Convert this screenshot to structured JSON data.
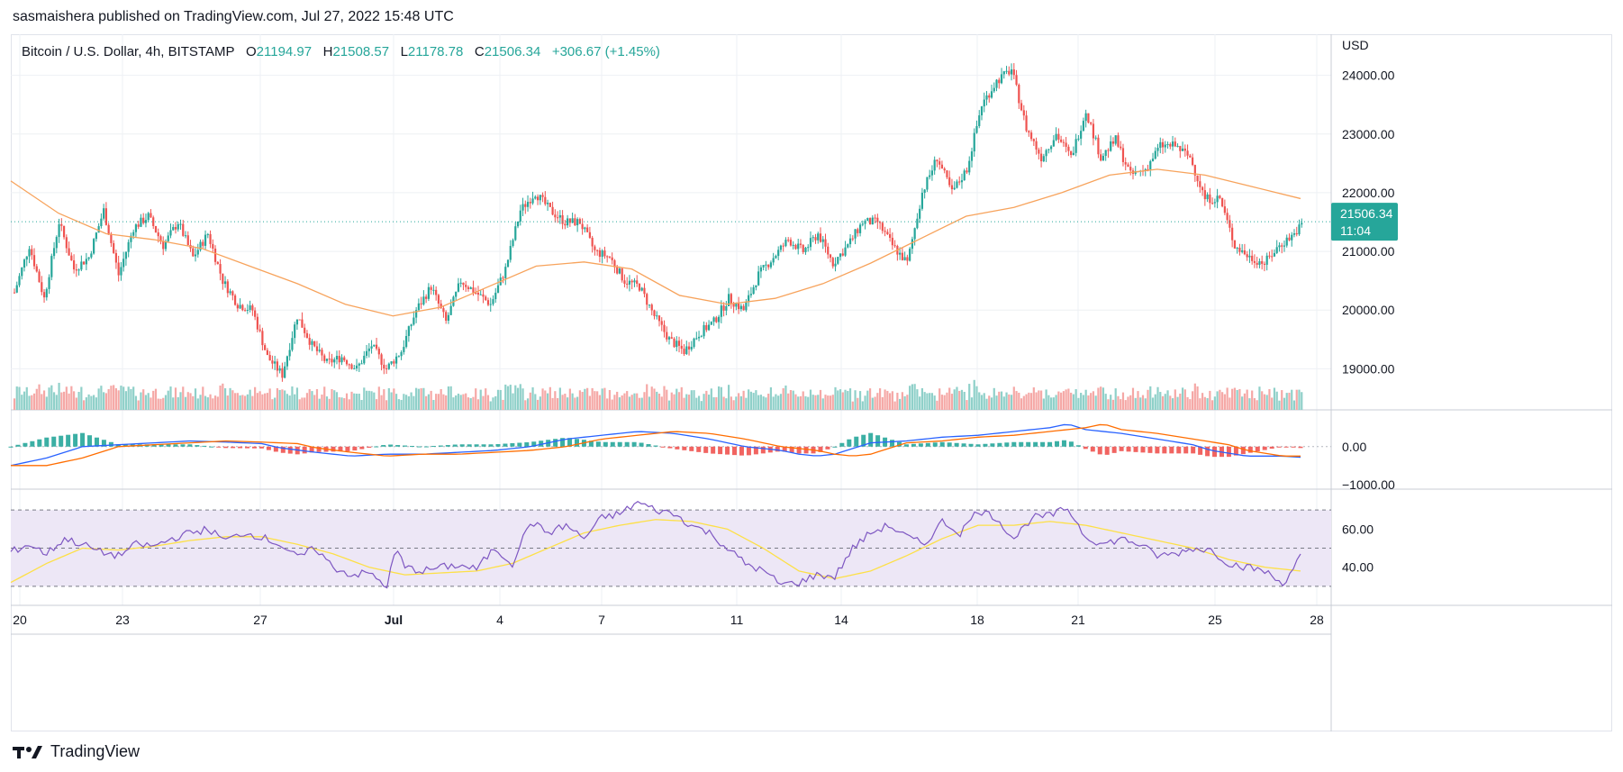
{
  "header": {
    "publish_text": "sasmaishera published on TradingView.com, Jul 27, 2022 15:48 UTC",
    "symbol": "Bitcoin / U.S. Dollar, 4h, BITSTAMP",
    "o_label": "O",
    "o_value": "21194.97",
    "h_label": "H",
    "h_value": "21508.57",
    "l_label": "L",
    "l_value": "21178.78",
    "c_label": "C",
    "c_value": "21506.34",
    "change": "+306.67 (+1.45%)"
  },
  "footer": {
    "brand": "TradingView"
  },
  "colors": {
    "up": "#26a69a",
    "down": "#ef5350",
    "up_volume": "#8fd0c9",
    "down_volume": "#f5a8a6",
    "ma": "#f7a35c",
    "macd": "#2962ff",
    "signal": "#ff6d00",
    "rsi": "#7e57c2",
    "rsi_ma": "#fde047",
    "rsi_band": "#ede7f6",
    "grid": "#eef0f4",
    "last_price_line": "#26a69a"
  },
  "chart_data": {
    "type": "candlestick",
    "title": "Bitcoin / U.S. Dollar, 4h, BITSTAMP",
    "price_axis": {
      "unit_label": "USD",
      "ticks": [
        "24000.00",
        "23000.00",
        "22000.00",
        "21000.00",
        "20000.00",
        "19000.00"
      ],
      "ylim": [
        18300,
        24700
      ]
    },
    "last_price": {
      "value": "21506.34",
      "countdown": "11:04",
      "numeric": 21506.34
    },
    "x_axis": {
      "ticks": [
        "20",
        "23",
        "27",
        "Jul",
        "4",
        "7",
        "11",
        "14",
        "18",
        "21",
        "25",
        "28"
      ]
    },
    "price_waypoints": [
      [
        0,
        20300
      ],
      [
        6,
        21100
      ],
      [
        12,
        20200
      ],
      [
        18,
        21500
      ],
      [
        24,
        20700
      ],
      [
        30,
        20900
      ],
      [
        36,
        21700
      ],
      [
        42,
        20600
      ],
      [
        48,
        21400
      ],
      [
        54,
        21600
      ],
      [
        60,
        21100
      ],
      [
        66,
        21500
      ],
      [
        72,
        20900
      ],
      [
        78,
        21300
      ],
      [
        84,
        20500
      ],
      [
        90,
        20100
      ],
      [
        96,
        20000
      ],
      [
        102,
        19200
      ],
      [
        108,
        18900
      ],
      [
        114,
        19900
      ],
      [
        120,
        19400
      ],
      [
        126,
        19100
      ],
      [
        132,
        19200
      ],
      [
        138,
        19000
      ],
      [
        144,
        19400
      ],
      [
        150,
        19000
      ],
      [
        156,
        19300
      ],
      [
        162,
        20000
      ],
      [
        168,
        20400
      ],
      [
        174,
        19800
      ],
      [
        180,
        20500
      ],
      [
        186,
        20300
      ],
      [
        192,
        20100
      ],
      [
        198,
        20700
      ],
      [
        204,
        21700
      ],
      [
        210,
        22000
      ],
      [
        216,
        21700
      ],
      [
        222,
        21500
      ],
      [
        228,
        21500
      ],
      [
        234,
        21000
      ],
      [
        240,
        20900
      ],
      [
        246,
        20500
      ],
      [
        252,
        20400
      ],
      [
        258,
        19900
      ],
      [
        264,
        19500
      ],
      [
        270,
        19300
      ],
      [
        276,
        19600
      ],
      [
        282,
        19800
      ],
      [
        288,
        20200
      ],
      [
        294,
        20000
      ],
      [
        300,
        20600
      ],
      [
        306,
        20900
      ],
      [
        312,
        21200
      ],
      [
        318,
        21000
      ],
      [
        324,
        21300
      ],
      [
        330,
        20800
      ],
      [
        336,
        21100
      ],
      [
        342,
        21500
      ],
      [
        348,
        21500
      ],
      [
        354,
        21100
      ],
      [
        360,
        20800
      ],
      [
        366,
        22000
      ],
      [
        372,
        22600
      ],
      [
        378,
        22000
      ],
      [
        384,
        22400
      ],
      [
        390,
        23500
      ],
      [
        396,
        23900
      ],
      [
        402,
        24100
      ],
      [
        408,
        23100
      ],
      [
        414,
        22600
      ],
      [
        420,
        23000
      ],
      [
        426,
        22600
      ],
      [
        432,
        23400
      ],
      [
        438,
        22600
      ],
      [
        444,
        22900
      ],
      [
        450,
        22300
      ],
      [
        456,
        22400
      ],
      [
        462,
        22800
      ],
      [
        468,
        22800
      ],
      [
        474,
        22600
      ],
      [
        480,
        21900
      ],
      [
        486,
        21900
      ],
      [
        492,
        21100
      ],
      [
        498,
        20900
      ],
      [
        504,
        20800
      ],
      [
        510,
        21100
      ],
      [
        516,
        21300
      ],
      [
        520,
        21506
      ]
    ],
    "moving_average": [
      [
        0,
        22200
      ],
      [
        40,
        21650
      ],
      [
        80,
        21300
      ],
      [
        120,
        21200
      ],
      [
        160,
        21050
      ],
      [
        200,
        20750
      ],
      [
        240,
        20450
      ],
      [
        280,
        20100
      ],
      [
        320,
        19900
      ],
      [
        360,
        20050
      ],
      [
        400,
        20400
      ],
      [
        440,
        20750
      ],
      [
        480,
        20820
      ],
      [
        520,
        20700
      ],
      [
        560,
        20250
      ],
      [
        600,
        20100
      ],
      [
        640,
        20200
      ],
      [
        680,
        20450
      ],
      [
        720,
        20800
      ],
      [
        760,
        21200
      ],
      [
        800,
        21600
      ],
      [
        840,
        21750
      ],
      [
        880,
        22000
      ],
      [
        920,
        22300
      ],
      [
        960,
        22400
      ],
      [
        1000,
        22300
      ],
      [
        1040,
        22100
      ],
      [
        1080,
        21900
      ]
    ],
    "volume": {
      "ylim": [
        0,
        100
      ]
    },
    "macd": {
      "ticks": [
        "0.00",
        "−1000.00"
      ],
      "ylim": [
        -1100,
        900
      ],
      "waypoints": [
        [
          0,
          -500
        ],
        [
          40,
          -300
        ],
        [
          80,
          0
        ],
        [
          120,
          50
        ],
        [
          160,
          100
        ],
        [
          200,
          150
        ],
        [
          240,
          120
        ],
        [
          280,
          80
        ],
        [
          300,
          -30
        ],
        [
          340,
          -150
        ],
        [
          380,
          -250
        ],
        [
          420,
          -200
        ],
        [
          460,
          -200
        ],
        [
          500,
          -150
        ],
        [
          540,
          -100
        ],
        [
          580,
          0
        ],
        [
          620,
          200
        ],
        [
          660,
          300
        ],
        [
          700,
          400
        ],
        [
          740,
          350
        ],
        [
          780,
          200
        ],
        [
          820,
          0
        ],
        [
          860,
          -100
        ],
        [
          880,
          -200
        ],
        [
          900,
          -250
        ],
        [
          920,
          -200
        ],
        [
          960,
          100
        ],
        [
          1000,
          150
        ],
        [
          1040,
          250
        ],
        [
          1080,
          300
        ],
        [
          1120,
          400
        ],
        [
          1160,
          500
        ],
        [
          1180,
          600
        ],
        [
          1200,
          450
        ],
        [
          1240,
          350
        ],
        [
          1280,
          200
        ],
        [
          1320,
          50
        ],
        [
          1340,
          -100
        ],
        [
          1380,
          -250
        ],
        [
          1420,
          -250
        ],
        [
          1440,
          -280
        ]
      ]
    },
    "rsi": {
      "ticks": [
        "60.00",
        "40.00"
      ],
      "ylim": [
        20,
        80
      ],
      "band": [
        30,
        70
      ],
      "waypoints": [
        [
          0,
          48
        ],
        [
          20,
          52
        ],
        [
          40,
          47
        ],
        [
          60,
          55
        ],
        [
          80,
          52
        ],
        [
          100,
          48
        ],
        [
          120,
          46
        ],
        [
          140,
          52
        ],
        [
          160,
          51
        ],
        [
          180,
          55
        ],
        [
          200,
          58
        ],
        [
          220,
          60
        ],
        [
          240,
          54
        ],
        [
          260,
          58
        ],
        [
          280,
          56
        ],
        [
          300,
          52
        ],
        [
          320,
          45
        ],
        [
          340,
          50
        ],
        [
          360,
          40
        ],
        [
          380,
          36
        ],
        [
          400,
          37
        ],
        [
          420,
          30
        ],
        [
          430,
          50
        ],
        [
          440,
          40
        ],
        [
          460,
          38
        ],
        [
          480,
          40
        ],
        [
          500,
          41
        ],
        [
          520,
          39
        ],
        [
          540,
          50
        ],
        [
          560,
          42
        ],
        [
          580,
          64
        ],
        [
          600,
          58
        ],
        [
          620,
          62
        ],
        [
          640,
          55
        ],
        [
          660,
          66
        ],
        [
          680,
          68
        ],
        [
          700,
          74
        ],
        [
          720,
          70
        ],
        [
          740,
          68
        ],
        [
          760,
          62
        ],
        [
          780,
          58
        ],
        [
          800,
          50
        ],
        [
          820,
          42
        ],
        [
          840,
          38
        ],
        [
          860,
          31
        ],
        [
          880,
          32
        ],
        [
          900,
          36
        ],
        [
          920,
          35
        ],
        [
          940,
          50
        ],
        [
          960,
          58
        ],
        [
          980,
          62
        ],
        [
          1000,
          56
        ],
        [
          1020,
          52
        ],
        [
          1040,
          64
        ],
        [
          1060,
          58
        ],
        [
          1080,
          70
        ],
        [
          1100,
          66
        ],
        [
          1120,
          55
        ],
        [
          1140,
          66
        ],
        [
          1160,
          67
        ],
        [
          1180,
          71
        ],
        [
          1200,
          56
        ],
        [
          1220,
          52
        ],
        [
          1240,
          55
        ],
        [
          1260,
          52
        ],
        [
          1280,
          46
        ],
        [
          1300,
          47
        ],
        [
          1320,
          50
        ],
        [
          1340,
          49
        ],
        [
          1360,
          42
        ],
        [
          1380,
          40
        ],
        [
          1400,
          38
        ],
        [
          1420,
          31
        ],
        [
          1440,
          46
        ]
      ],
      "ma_waypoints": [
        [
          0,
          32
        ],
        [
          40,
          42
        ],
        [
          80,
          50
        ],
        [
          120,
          49
        ],
        [
          160,
          51
        ],
        [
          200,
          54
        ],
        [
          240,
          56
        ],
        [
          280,
          56
        ],
        [
          320,
          52
        ],
        [
          360,
          47
        ],
        [
          400,
          40
        ],
        [
          440,
          36
        ],
        [
          480,
          37
        ],
        [
          520,
          38
        ],
        [
          560,
          42
        ],
        [
          600,
          50
        ],
        [
          640,
          58
        ],
        [
          680,
          62
        ],
        [
          720,
          65
        ],
        [
          760,
          64
        ],
        [
          800,
          60
        ],
        [
          840,
          50
        ],
        [
          880,
          38
        ],
        [
          920,
          34
        ],
        [
          960,
          38
        ],
        [
          1000,
          46
        ],
        [
          1040,
          55
        ],
        [
          1080,
          62
        ],
        [
          1120,
          62
        ],
        [
          1160,
          64
        ],
        [
          1200,
          62
        ],
        [
          1240,
          58
        ],
        [
          1280,
          54
        ],
        [
          1320,
          50
        ],
        [
          1360,
          44
        ],
        [
          1400,
          40
        ],
        [
          1440,
          38
        ]
      ]
    }
  }
}
